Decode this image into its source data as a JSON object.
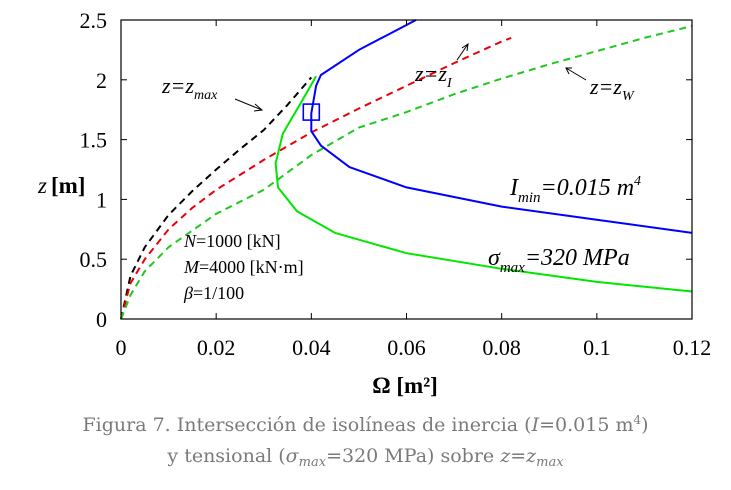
{
  "chart_data": {
    "type": "line",
    "xlabel": "Ω [m²]",
    "ylabel_var": "z",
    "ylabel_unit": "[m]",
    "xlim": [
      0,
      0.12
    ],
    "ylim": [
      0,
      2.5
    ],
    "x_ticks": [
      0,
      0.02,
      0.04,
      0.06,
      0.08,
      0.1,
      0.12
    ],
    "x_tick_labels": [
      "0",
      "0.02",
      "0.04",
      "0.06",
      "0.08",
      "0.1",
      "0.12"
    ],
    "y_ticks": [
      0,
      0.5,
      1,
      1.5,
      2,
      2.5
    ],
    "y_tick_labels": [
      "0",
      "0.5",
      "1",
      "1.5",
      "2",
      "2.5"
    ],
    "grid": false,
    "series": [
      {
        "name": "z=zmax",
        "color": "#000000",
        "dashed": true,
        "points": [
          [
            0.0,
            0.0
          ],
          [
            0.002,
            0.36
          ],
          [
            0.005,
            0.6
          ],
          [
            0.01,
            0.87
          ],
          [
            0.015,
            1.07
          ],
          [
            0.02,
            1.25
          ],
          [
            0.025,
            1.42
          ],
          [
            0.03,
            1.58
          ],
          [
            0.035,
            1.79
          ],
          [
            0.04,
            2.02
          ]
        ]
      },
      {
        "name": "z=zI",
        "color": "#e8000b",
        "dashed": true,
        "points": [
          [
            0.0,
            0.0
          ],
          [
            0.002,
            0.3
          ],
          [
            0.005,
            0.5
          ],
          [
            0.01,
            0.75
          ],
          [
            0.015,
            0.93
          ],
          [
            0.02,
            1.08
          ],
          [
            0.03,
            1.33
          ],
          [
            0.04,
            1.56
          ],
          [
            0.05,
            1.76
          ],
          [
            0.06,
            1.95
          ],
          [
            0.07,
            2.14
          ],
          [
            0.08,
            2.32
          ],
          [
            0.082,
            2.35
          ]
        ]
      },
      {
        "name": "z=zW",
        "color": "#1ec81e",
        "dashed": true,
        "points": [
          [
            0.0,
            0.0
          ],
          [
            0.002,
            0.2
          ],
          [
            0.005,
            0.4
          ],
          [
            0.01,
            0.6
          ],
          [
            0.02,
            0.88
          ],
          [
            0.03,
            1.08
          ],
          [
            0.04,
            1.37
          ],
          [
            0.05,
            1.6
          ],
          [
            0.06,
            1.73
          ],
          [
            0.07,
            1.88
          ],
          [
            0.08,
            2.01
          ],
          [
            0.09,
            2.13
          ],
          [
            0.1,
            2.24
          ],
          [
            0.11,
            2.35
          ],
          [
            0.12,
            2.45
          ]
        ]
      },
      {
        "name": "Imin=0.015 m4",
        "color": "#0000ff",
        "dashed": false,
        "points": [
          [
            0.062,
            2.5
          ],
          [
            0.05,
            2.25
          ],
          [
            0.042,
            2.04
          ],
          [
            0.041,
            1.95
          ],
          [
            0.04,
            1.72
          ],
          [
            0.04,
            1.57
          ],
          [
            0.042,
            1.45
          ],
          [
            0.048,
            1.27
          ],
          [
            0.06,
            1.1
          ],
          [
            0.08,
            0.94
          ],
          [
            0.1,
            0.83
          ],
          [
            0.12,
            0.72
          ]
        ]
      },
      {
        "name": "σmax=320 MPa",
        "color": "#00e600",
        "dashed": false,
        "points": [
          [
            0.041,
            2.03
          ],
          [
            0.038,
            1.82
          ],
          [
            0.034,
            1.55
          ],
          [
            0.0325,
            1.3
          ],
          [
            0.033,
            1.1
          ],
          [
            0.037,
            0.9
          ],
          [
            0.045,
            0.72
          ],
          [
            0.06,
            0.55
          ],
          [
            0.08,
            0.42
          ],
          [
            0.1,
            0.31
          ],
          [
            0.12,
            0.23
          ]
        ]
      }
    ],
    "marker": {
      "shape": "square",
      "x": 0.04,
      "y": 1.73,
      "color": "#0000ff"
    },
    "annotations": {
      "zmax_label": {
        "main": "z=z",
        "sub": "max"
      },
      "zI_label": {
        "main": "z=z",
        "sub": "I"
      },
      "zW_label": {
        "main": "z=z",
        "sub": "W"
      },
      "imin_label": {
        "main": "I",
        "sub": "min",
        "rest": "=0.015 m",
        "sup": "4"
      },
      "sigma_label": {
        "main": "σ",
        "sub": "max",
        "rest": "=320 MPa"
      },
      "params": {
        "N": "=1000 [kN]",
        "M": "=4000 [kN·m]",
        "beta": "=1/100"
      }
    }
  },
  "caption": {
    "line1_a": "Figura 7. Intersección de isolíneas de inercia (",
    "line1_var": "I",
    "line1_b": "=0.015 m",
    "line1_sup": "4",
    "line1_c": ")",
    "line2_a": "y tensional (",
    "line2_sigma": "σ",
    "line2_sub": "max",
    "line2_b": "=320 MPa) sobre ",
    "line2_z": "z=z",
    "line2_zsub": "max"
  }
}
